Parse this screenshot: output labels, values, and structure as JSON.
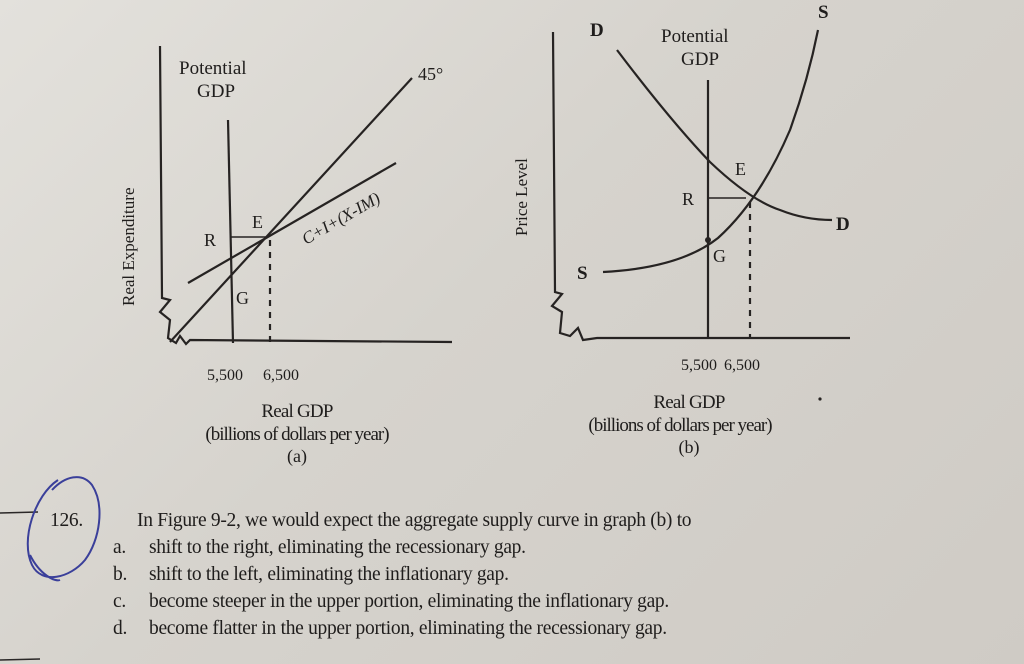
{
  "figure_a": {
    "y_axis_label": "Real Expenditure",
    "potential_label_line1": "Potential",
    "potential_label_line2": "GDP",
    "degree_label": "45°",
    "curve_label": "C+I+(X-IM)",
    "point_e": "E",
    "point_r": "R",
    "point_g": "G",
    "tick_5500": "5,500",
    "tick_6500": "6,500",
    "x_label": "Real GDP",
    "x_units": "(billions of dollars per year)",
    "panel": "(a)"
  },
  "figure_b": {
    "y_axis_label": "Price Level",
    "potential_label_line1": "Potential",
    "potential_label_line2": "GDP",
    "demand_top": "D",
    "demand_right": "D",
    "supply_top": "S",
    "supply_left": "S",
    "point_e": "E",
    "point_r": "R",
    "point_g": "G",
    "tick_5500": "5,500",
    "tick_6500": "6,500",
    "x_label": "Real GDP",
    "x_units": "(billions of dollars per year)",
    "panel": "(b)"
  },
  "question": {
    "number": "126.",
    "text": "In Figure 9-2, we would expect the aggregate supply curve in graph (b) to",
    "options": [
      {
        "letter": "a.",
        "text": "shift to the right, eliminating the recessionary gap."
      },
      {
        "letter": "b.",
        "text": "shift to the left, eliminating the inflationary gap."
      },
      {
        "letter": "c.",
        "text": "become steeper in the upper portion, eliminating the inflationary gap."
      },
      {
        "letter": "d.",
        "text": "become flatter in the upper portion, eliminating the recessionary gap."
      }
    ],
    "circle_color": "#3a3f9a"
  }
}
